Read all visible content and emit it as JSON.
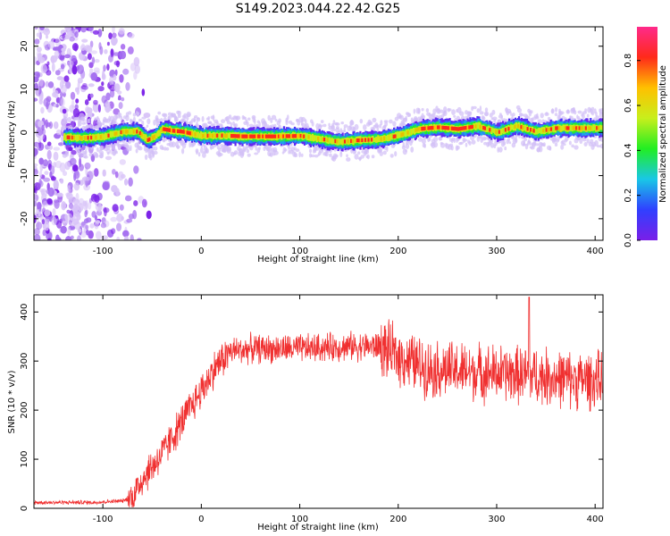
{
  "title": "S149.2023.044.22.42.G25",
  "chart_data": [
    {
      "type": "heatmap",
      "xlabel": "Height of straight line (km)",
      "ylabel": "Frequency (Hz)",
      "xlim": [
        -170,
        408
      ],
      "ylim": [
        -25,
        24.5
      ],
      "xticks": [
        -100,
        0,
        100,
        200,
        300,
        400
      ],
      "yticks": [
        -20,
        -10,
        0,
        10,
        20
      ],
      "ridge_center": {
        "x": [
          -150,
          -120,
          -100,
          -80,
          -65,
          -55,
          -45,
          -40,
          -30,
          -20,
          0,
          20,
          40,
          60,
          80,
          100,
          120,
          140,
          160,
          180,
          200,
          220,
          240,
          260,
          280,
          300,
          320,
          340,
          360,
          380,
          400,
          408
        ],
        "y": [
          -1.0,
          -1.3,
          -1.0,
          0.2,
          0.2,
          -1.8,
          -0.5,
          0.8,
          0.4,
          0.2,
          -0.8,
          -0.7,
          -0.9,
          -0.9,
          -0.9,
          -0.8,
          -1.5,
          -2.2,
          -1.8,
          -1.6,
          -0.7,
          0.8,
          1.2,
          0.8,
          1.5,
          0.0,
          1.5,
          0.2,
          1.0,
          1.0,
          1.0,
          1.2
        ]
      },
      "colorbar": {
        "label": "Normalized spectral amplitude",
        "range": [
          0,
          0.95
        ],
        "ticks": [
          "0.0",
          "0.2",
          "0.4",
          "0.6",
          "0.8"
        ],
        "colormap": [
          "#7a1fe8",
          "#3040ff",
          "#19c7e6",
          "#22ee22",
          "#c7ef1c",
          "#ffc000",
          "#ff2a1a",
          "#ff2a8a"
        ]
      }
    },
    {
      "type": "line",
      "xlabel": "Height of straight line (km)",
      "ylabel": "SNR (10 * v/v)",
      "xlim": [
        -170,
        408
      ],
      "ylim": [
        0,
        435
      ],
      "xticks": [
        -100,
        0,
        100,
        200,
        300,
        400
      ],
      "yticks": [
        0,
        100,
        200,
        300,
        400
      ],
      "color": "#f03030",
      "envelope": {
        "x": [
          -170,
          -110,
          -80,
          -70,
          -60,
          -40,
          -20,
          0,
          15,
          30,
          50,
          100,
          150,
          180,
          200,
          230,
          260,
          300,
          340,
          380,
          408
        ],
        "y": [
          12,
          12,
          15,
          22,
          60,
          110,
          175,
          240,
          290,
          320,
          325,
          325,
          330,
          330,
          310,
          285,
          280,
          275,
          270,
          262,
          260
        ]
      },
      "peak": {
        "x": 333,
        "y": 430
      }
    }
  ]
}
